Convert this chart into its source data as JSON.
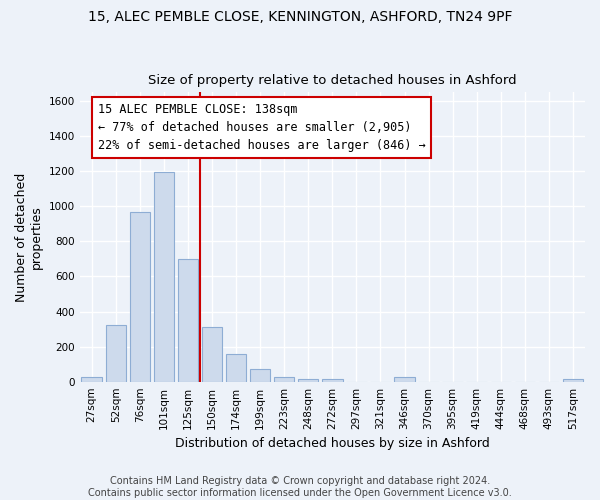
{
  "title_line1": "15, ALEC PEMBLE CLOSE, KENNINGTON, ASHFORD, TN24 9PF",
  "title_line2": "Size of property relative to detached houses in Ashford",
  "xlabel": "Distribution of detached houses by size in Ashford",
  "ylabel": "Number of detached\nproperties",
  "bar_labels": [
    "27sqm",
    "52sqm",
    "76sqm",
    "101sqm",
    "125sqm",
    "150sqm",
    "174sqm",
    "199sqm",
    "223sqm",
    "248sqm",
    "272sqm",
    "297sqm",
    "321sqm",
    "346sqm",
    "370sqm",
    "395sqm",
    "419sqm",
    "444sqm",
    "468sqm",
    "493sqm",
    "517sqm"
  ],
  "bar_values": [
    27,
    323,
    968,
    1197,
    700,
    310,
    155,
    75,
    27,
    18,
    14,
    0,
    0,
    28,
    0,
    0,
    0,
    0,
    0,
    0,
    18
  ],
  "bar_color": "#cddaec",
  "bar_edge_color": "#8eadd4",
  "red_line_color": "#cc0000",
  "annotation_line1": "15 ALEC PEMBLE CLOSE: 138sqm",
  "annotation_line2": "← 77% of detached houses are smaller (2,905)",
  "annotation_line3": "22% of semi-detached houses are larger (846) →",
  "annotation_box_edge_color": "#cc0000",
  "ylim": [
    0,
    1650
  ],
  "yticks": [
    0,
    200,
    400,
    600,
    800,
    1000,
    1200,
    1400,
    1600
  ],
  "background_color": "#edf2f9",
  "grid_color": "#ffffff",
  "footer_text": "Contains HM Land Registry data © Crown copyright and database right 2024.\nContains public sector information licensed under the Open Government Licence v3.0.",
  "title_fontsize": 10,
  "subtitle_fontsize": 9.5,
  "label_fontsize": 9,
  "tick_fontsize": 7.5,
  "annotation_fontsize": 8.5,
  "footer_fontsize": 7
}
